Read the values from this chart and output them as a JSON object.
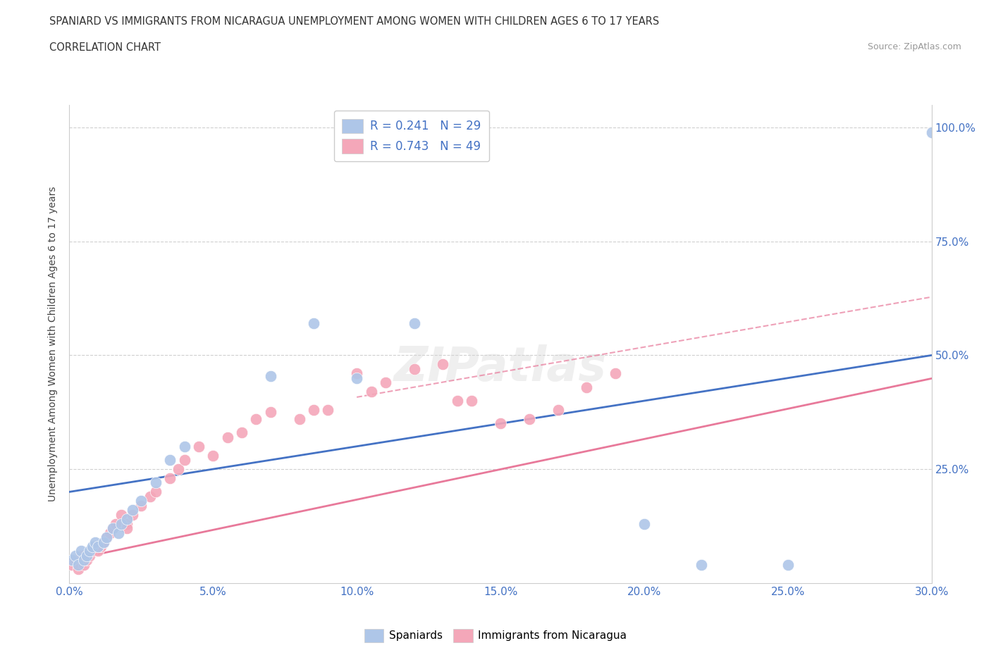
{
  "title_line1": "SPANIARD VS IMMIGRANTS FROM NICARAGUA UNEMPLOYMENT AMONG WOMEN WITH CHILDREN AGES 6 TO 17 YEARS",
  "title_line2": "CORRELATION CHART",
  "source_text": "Source: ZipAtlas.com",
  "ylabel": "Unemployment Among Women with Children Ages 6 to 17 years",
  "xlim": [
    0.0,
    0.3
  ],
  "ylim": [
    0.0,
    1.05
  ],
  "xtick_labels": [
    "0.0%",
    "5.0%",
    "10.0%",
    "15.0%",
    "20.0%",
    "25.0%",
    "30.0%"
  ],
  "xtick_vals": [
    0.0,
    0.05,
    0.1,
    0.15,
    0.2,
    0.25,
    0.3
  ],
  "ytick_labels": [
    "",
    "25.0%",
    "50.0%",
    "75.0%",
    "100.0%"
  ],
  "ytick_vals": [
    0.0,
    0.25,
    0.5,
    0.75,
    1.0
  ],
  "grid_color": "#d0d0d0",
  "background_color": "#ffffff",
  "spaniard_color": "#aec6e8",
  "nicaragua_color": "#f4a7b9",
  "spaniard_line_color": "#4472c4",
  "nicaragua_line_color": "#e8799a",
  "trend_dash_color": "#e8799a",
  "watermark": "ZIPatlas",
  "sp_x": [
    0.001,
    0.002,
    0.003,
    0.004,
    0.005,
    0.006,
    0.007,
    0.008,
    0.009,
    0.01,
    0.012,
    0.013,
    0.015,
    0.017,
    0.018,
    0.02,
    0.022,
    0.025,
    0.03,
    0.035,
    0.04,
    0.07,
    0.085,
    0.1,
    0.12,
    0.2,
    0.22,
    0.25,
    0.3
  ],
  "sp_y": [
    0.05,
    0.06,
    0.04,
    0.07,
    0.05,
    0.06,
    0.07,
    0.08,
    0.09,
    0.08,
    0.09,
    0.1,
    0.12,
    0.11,
    0.13,
    0.14,
    0.16,
    0.18,
    0.22,
    0.27,
    0.3,
    0.455,
    0.57,
    0.45,
    0.57,
    0.13,
    0.04,
    0.04,
    0.99
  ],
  "nic_x": [
    0.001,
    0.002,
    0.003,
    0.004,
    0.005,
    0.006,
    0.007,
    0.008,
    0.009,
    0.01,
    0.011,
    0.012,
    0.013,
    0.014,
    0.015,
    0.016,
    0.018,
    0.02,
    0.022,
    0.025,
    0.028,
    0.03,
    0.035,
    0.038,
    0.04,
    0.045,
    0.05,
    0.055,
    0.06,
    0.065,
    0.07,
    0.08,
    0.085,
    0.09,
    0.1,
    0.105,
    0.11,
    0.12,
    0.13,
    0.135,
    0.14,
    0.15,
    0.16,
    0.17,
    0.18,
    0.19,
    0.005,
    0.01,
    0.02
  ],
  "nic_y": [
    0.04,
    0.05,
    0.03,
    0.06,
    0.04,
    0.05,
    0.06,
    0.07,
    0.08,
    0.07,
    0.08,
    0.09,
    0.1,
    0.11,
    0.12,
    0.13,
    0.15,
    0.13,
    0.15,
    0.17,
    0.19,
    0.2,
    0.23,
    0.25,
    0.27,
    0.3,
    0.28,
    0.32,
    0.33,
    0.36,
    0.375,
    0.36,
    0.38,
    0.38,
    0.46,
    0.42,
    0.44,
    0.47,
    0.48,
    0.4,
    0.4,
    0.35,
    0.36,
    0.38,
    0.43,
    0.46,
    0.06,
    0.08,
    0.12
  ]
}
